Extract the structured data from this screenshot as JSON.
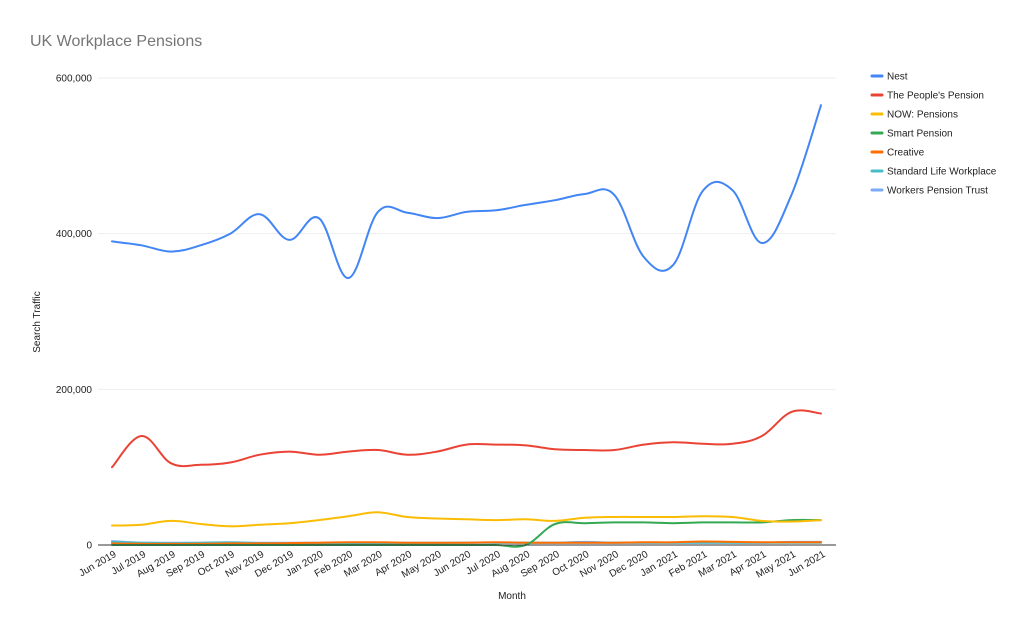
{
  "chart_data": {
    "type": "line",
    "title": "UK Workplace Pensions",
    "xlabel": "Month",
    "ylabel": "Search Traffic",
    "ylim": [
      0,
      600000
    ],
    "yticks": [
      0,
      200000,
      400000,
      600000
    ],
    "ytick_labels": [
      "0",
      "200,000",
      "400,000",
      "600,000"
    ],
    "grid": true,
    "legend_position": "right",
    "categories": [
      "Jun 2019",
      "Jul 2019",
      "Aug 2019",
      "Sep 2019",
      "Oct 2019",
      "Nov 2019",
      "Dec 2019",
      "Jan 2020",
      "Feb 2020",
      "Mar 2020",
      "Apr 2020",
      "May 2020",
      "Jun 2020",
      "Jul 2020",
      "Aug 2020",
      "Sep 2020",
      "Oct 2020",
      "Nov 2020",
      "Dec 2020",
      "Jan 2021",
      "Feb 2021",
      "Mar 2021",
      "Apr 2021",
      "May 2021",
      "Jun 2021"
    ],
    "series": [
      {
        "name": "Nest",
        "color": "#4285f4",
        "values": [
          390000,
          385000,
          377000,
          385000,
          400000,
          425000,
          392000,
          420000,
          343000,
          428000,
          427000,
          420000,
          428000,
          430000,
          437000,
          443000,
          451000,
          450000,
          370000,
          360000,
          455000,
          456000,
          388000,
          450000,
          565000
        ]
      },
      {
        "name": "The People's Pension",
        "color": "#ea4335",
        "values": [
          100000,
          140000,
          105000,
          103000,
          106000,
          116000,
          120000,
          116000,
          120000,
          122000,
          116000,
          120000,
          129000,
          129000,
          128000,
          123000,
          122000,
          122000,
          129000,
          132000,
          130000,
          130000,
          140000,
          171000,
          169000
        ]
      },
      {
        "name": "NOW: Pensions",
        "color": "#fbbc04",
        "values": [
          25000,
          26000,
          31000,
          27000,
          24000,
          26000,
          28000,
          32000,
          37000,
          42000,
          36000,
          34000,
          33000,
          32000,
          33000,
          31000,
          35000,
          36000,
          36000,
          36000,
          37000,
          36000,
          31000,
          30000,
          32000
        ]
      },
      {
        "name": "Smart Pension",
        "color": "#34a853",
        "values": [
          0,
          0,
          0,
          0,
          0,
          0,
          0,
          0,
          0,
          0,
          0,
          0,
          0,
          0,
          0,
          27000,
          28000,
          29000,
          29000,
          28000,
          29000,
          29000,
          29000,
          32000,
          32000
        ]
      },
      {
        "name": "Creative",
        "color": "#ff6d01",
        "values": [
          2000,
          1500,
          1500,
          1500,
          2000,
          2000,
          2500,
          3000,
          3500,
          3500,
          3000,
          3000,
          3000,
          3500,
          3000,
          3000,
          3000,
          3000,
          3500,
          3500,
          4500,
          4000,
          3500,
          3500,
          3500
        ]
      },
      {
        "name": "Standard Life Workplace",
        "color": "#46bdc6",
        "values": [
          4000,
          3000,
          2500,
          3000,
          3500,
          2500,
          2000,
          2000,
          2000,
          2000,
          2500,
          2500,
          3000,
          3000,
          3000,
          3000,
          3000,
          3000,
          3000,
          3000,
          3000,
          3000,
          3000,
          3000,
          3000
        ]
      },
      {
        "name": "Workers Pension Trust",
        "color": "#7baaf7",
        "values": [
          5000,
          3000,
          3000,
          3000,
          3000,
          3000,
          3000,
          3000,
          3000,
          3000,
          3000,
          3000,
          3000,
          3000,
          3000,
          3000,
          4000,
          3000,
          3000,
          3000,
          3000,
          3000,
          3000,
          4000,
          4000
        ]
      }
    ]
  }
}
